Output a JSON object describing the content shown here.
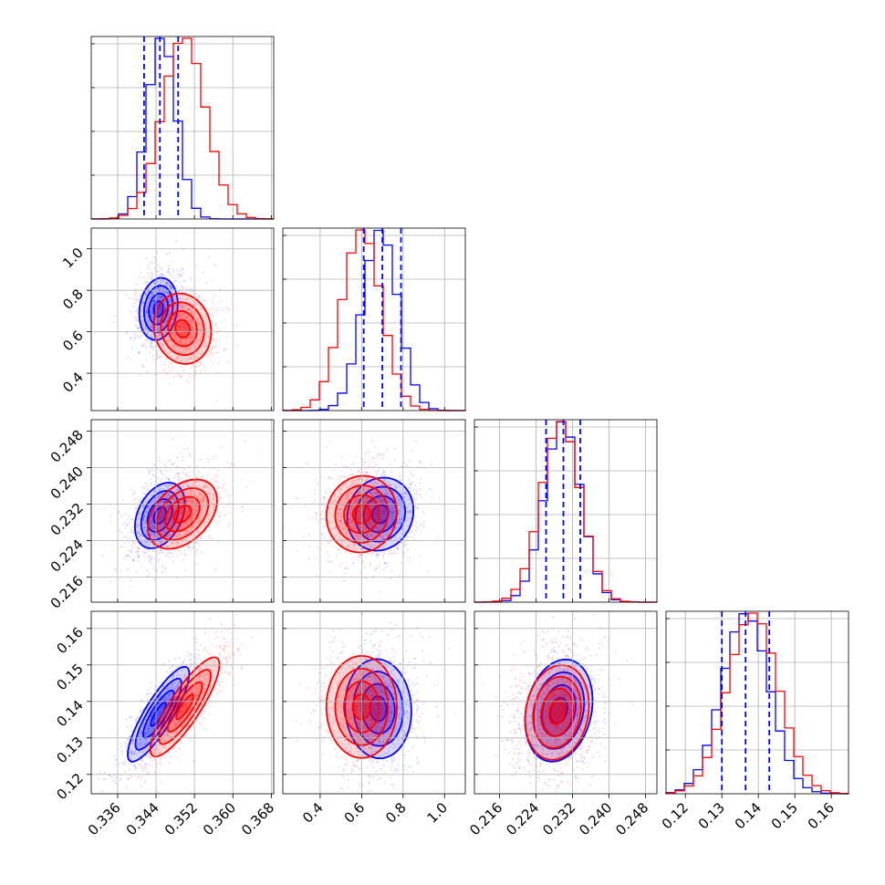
{
  "chart_data": {
    "type": "corner",
    "grid": true,
    "series": [
      {
        "color": "#0000ff"
      },
      {
        "color": "#ff0000"
      }
    ],
    "params": [
      {
        "ticks": [
          "0.336",
          "0.344",
          "0.352",
          "0.360",
          "0.368"
        ],
        "tick_values": [
          0.336,
          0.344,
          0.352,
          0.36,
          0.368
        ],
        "range": [
          0.3305,
          0.3685
        ],
        "quantiles": [
          0.3415,
          0.3448,
          0.3486
        ],
        "blue": {
          "mean": 0.3452,
          "sd": 0.003
        },
        "red": {
          "mean": 0.3498,
          "sd": 0.0045
        }
      },
      {
        "ticks": [
          "0.4",
          "0.6",
          "0.8",
          "1.0"
        ],
        "tick_values": [
          0.4,
          0.6,
          0.8,
          1.0
        ],
        "range": [
          0.22,
          1.1
        ],
        "quantiles": [
          0.61,
          0.7,
          0.79
        ],
        "blue": {
          "mean": 0.69,
          "sd": 0.085
        },
        "red": {
          "mean": 0.6,
          "sd": 0.095
        }
      },
      {
        "ticks": [
          "0.216",
          "0.224",
          "0.232",
          "0.240",
          "0.248"
        ],
        "tick_values": [
          0.216,
          0.224,
          0.232,
          0.24,
          0.248
        ],
        "range": [
          0.2105,
          0.2505
        ],
        "quantiles": [
          0.2262,
          0.23,
          0.2337
        ],
        "blue": {
          "mean": 0.2298,
          "sd": 0.004
        },
        "red": {
          "mean": 0.2294,
          "sd": 0.0043
        }
      },
      {
        "ticks": [
          "0.12",
          "0.13",
          "0.14",
          "0.15",
          "0.16"
        ],
        "tick_values": [
          0.12,
          0.13,
          0.14,
          0.15,
          0.16
        ],
        "range": [
          0.1147,
          0.1647
        ],
        "quantiles": [
          0.13,
          0.1365,
          0.143
        ],
        "blue": {
          "mean": 0.1365,
          "sd": 0.0065
        },
        "red": {
          "mean": 0.1385,
          "sd": 0.007
        }
      }
    ],
    "pairs": {
      "1-0": {
        "blue": [
          [
            0.3445,
            0.71
          ],
          0.002,
          0.075,
          0.15
        ],
        "red": [
          [
            0.3495,
            0.615
          ],
          0.003,
          0.085,
          -0.1
        ]
      },
      "2-0": {
        "blue": [
          [
            0.3448,
            0.2295
          ],
          0.0026,
          0.0036,
          0.35
        ],
        "red": [
          [
            0.3495,
            0.2298
          ],
          0.0036,
          0.0038,
          0.4
        ]
      },
      "2-1": {
        "blue": [
          [
            0.69,
            0.2298
          ],
          0.08,
          0.004,
          0.1
        ],
        "red": [
          [
            0.6,
            0.2298
          ],
          0.085,
          0.0042,
          0.05
        ]
      },
      "3-0": {
        "blue": [
          [
            0.3445,
            0.1365
          ],
          0.0032,
          0.0065,
          0.85
        ],
        "red": [
          [
            0.35,
            0.1385
          ],
          0.0036,
          0.0068,
          0.85
        ]
      },
      "3-1": {
        "blue": [
          [
            0.68,
            0.138
          ],
          0.08,
          0.0068,
          -0.05
        ],
        "red": [
          [
            0.6,
            0.1385
          ],
          0.085,
          0.007,
          0.0
        ]
      },
      "3-2": {
        "blue": [
          [
            0.229,
            0.1375
          ],
          0.0037,
          0.007,
          0.2
        ],
        "red": [
          [
            0.2286,
            0.137
          ],
          0.0035,
          0.0065,
          0.15
        ]
      }
    }
  }
}
